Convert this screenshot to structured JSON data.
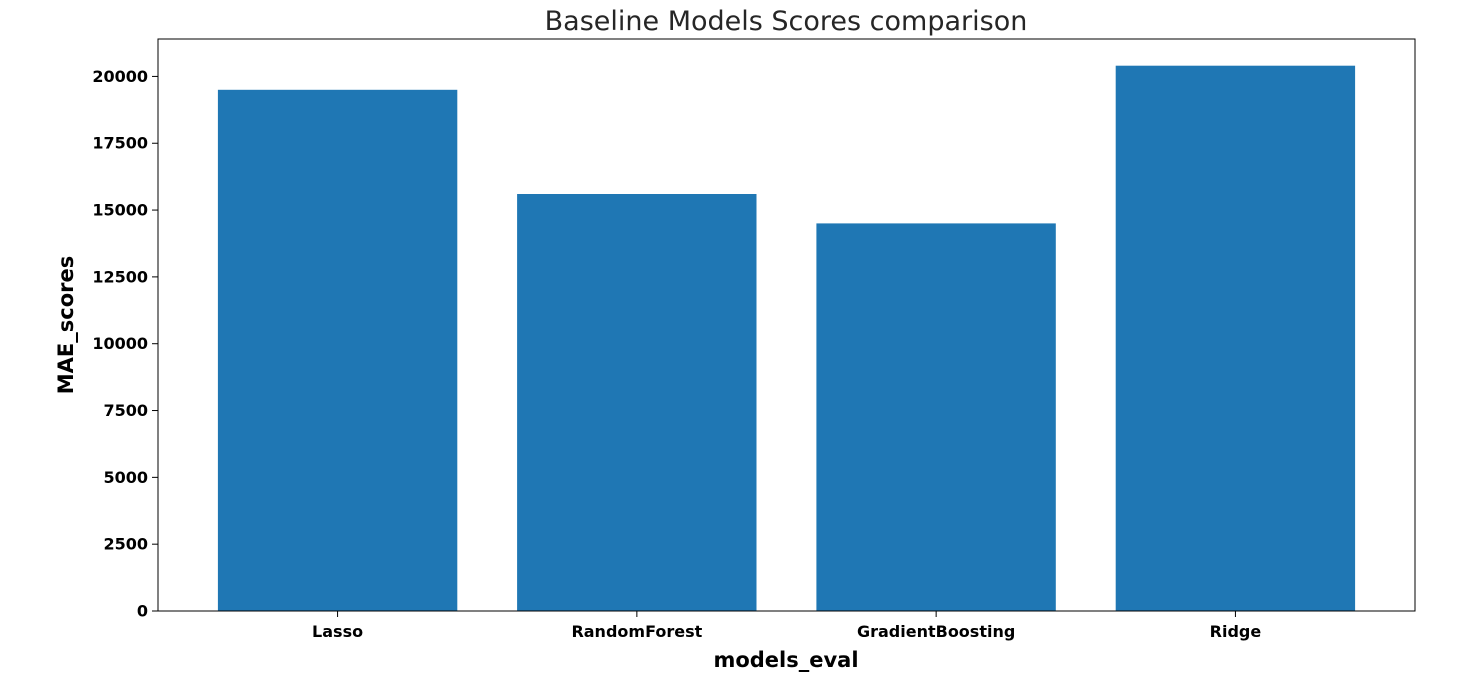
{
  "chart_data": {
    "type": "bar",
    "title": "Baseline Models Scores comparison",
    "xlabel": "models_eval",
    "ylabel": "MAE_scores",
    "categories": [
      "Lasso",
      "RandomForest",
      "GradientBoosting",
      "Ridge"
    ],
    "values": [
      19500,
      15600,
      14500,
      20400
    ],
    "ylim": [
      0,
      21400
    ],
    "yticks": [
      0,
      2500,
      5000,
      7500,
      10000,
      12500,
      15000,
      17500,
      20000
    ],
    "grid": false,
    "bar_color": "#1f77b4"
  }
}
